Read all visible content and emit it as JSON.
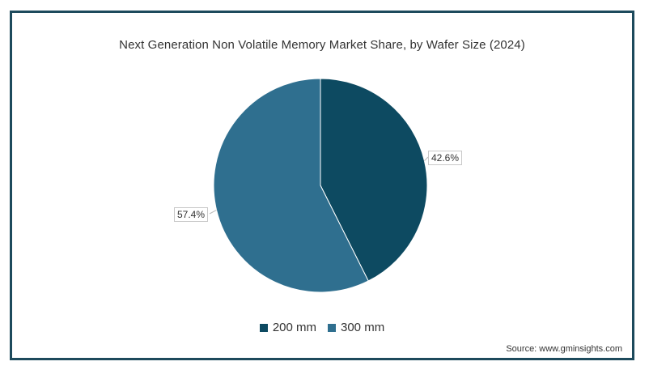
{
  "chart_data": {
    "type": "pie",
    "title": "Next Generation Non Volatile Memory Market Share, by Wafer Size (2024)",
    "slices": [
      {
        "name": "200 mm",
        "value": 42.6,
        "label": "42.6%",
        "color": "#0d4a61"
      },
      {
        "name": "300 mm",
        "value": 57.4,
        "label": "57.4%",
        "color": "#2f6f8f"
      }
    ],
    "legend_position": "bottom"
  },
  "source": "Source: www.gminsights.com"
}
